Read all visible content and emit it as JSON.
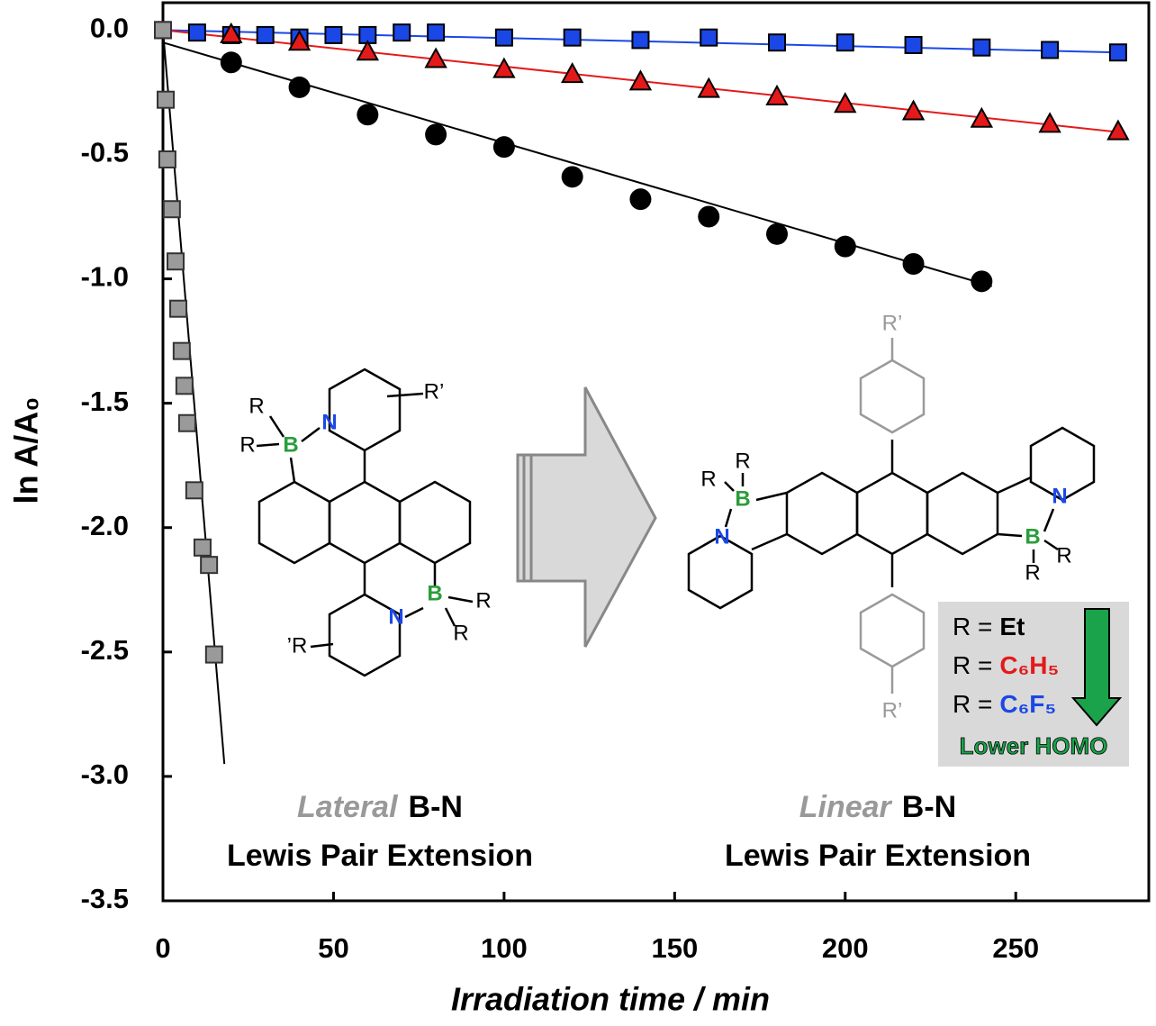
{
  "chart_data": {
    "type": "scatter",
    "xlabel": "Irradiation time / min",
    "ylabel": "ln A/A₀",
    "xlim": [
      0,
      289
    ],
    "ylim": [
      -3.5,
      0.11
    ],
    "xticks": [
      0,
      50,
      100,
      150,
      200,
      250
    ],
    "yticks": [
      {
        "value": 0,
        "label": "0.0"
      },
      {
        "value": -0.5,
        "label": "-0.5"
      },
      {
        "value": -1,
        "label": "-1.0"
      },
      {
        "value": -1.5,
        "label": "-1.5"
      },
      {
        "value": -2,
        "label": "-2.0"
      },
      {
        "value": -2.5,
        "label": "-2.5"
      },
      {
        "value": -3,
        "label": "-3.0"
      },
      {
        "value": -3.5,
        "label": "-3.5"
      }
    ],
    "series": [
      {
        "name": "C₆F₅",
        "color": "#1a47e6",
        "marker": "square",
        "x": [
          0,
          10,
          20,
          30,
          40,
          50,
          60,
          70,
          80,
          100,
          120,
          140,
          160,
          180,
          200,
          220,
          240,
          260,
          280
        ],
        "values": [
          0,
          -0.01,
          -0.02,
          -0.02,
          -0.03,
          -0.02,
          -0.02,
          -0.01,
          -0.01,
          -0.03,
          -0.03,
          -0.04,
          -0.03,
          -0.05,
          -0.05,
          -0.06,
          -0.07,
          -0.08,
          -0.09
        ],
        "fit": {
          "x": [
            0,
            280
          ],
          "y": [
            0,
            -0.09
          ]
        }
      },
      {
        "name": "C₆H₅",
        "color": "#e41a1a",
        "marker": "triangle",
        "x": [
          20,
          40,
          60,
          80,
          100,
          120,
          140,
          160,
          180,
          200,
          220,
          240,
          260,
          280
        ],
        "values": [
          -0.02,
          -0.05,
          -0.09,
          -0.12,
          -0.16,
          -0.18,
          -0.21,
          -0.24,
          -0.27,
          -0.3,
          -0.33,
          -0.36,
          -0.38,
          -0.41
        ],
        "fit": {
          "x": [
            0,
            280
          ],
          "y": [
            0,
            -0.41
          ]
        }
      },
      {
        "name": "Et",
        "color": "#000000",
        "marker": "circle",
        "x": [
          20,
          40,
          60,
          80,
          100,
          120,
          140,
          160,
          180,
          200,
          220,
          240
        ],
        "values": [
          -0.13,
          -0.23,
          -0.34,
          -0.42,
          -0.47,
          -0.59,
          -0.68,
          -0.75,
          -0.82,
          -0.87,
          -0.94,
          -1.01
        ],
        "fit": {
          "x": [
            0,
            243
          ],
          "y": [
            -0.05,
            -1.03
          ]
        }
      },
      {
        "color": "#9a9a9a",
        "marker": "square",
        "x": [
          0,
          0.8,
          1.3,
          2.6,
          3.7,
          4.5,
          5.5,
          6.3,
          7.1,
          9.2,
          11.6,
          13.5,
          15
        ],
        "values": [
          0,
          -0.28,
          -0.52,
          -0.72,
          -0.93,
          -1.12,
          -1.29,
          -1.43,
          -1.58,
          -1.85,
          -2.08,
          -2.15,
          -2.51
        ],
        "fit": {
          "x": [
            0,
            18
          ],
          "y": [
            0,
            -2.95
          ]
        }
      }
    ],
    "legend_prefix": "R =",
    "legend_note": "Lower HOMO",
    "annotations": {
      "left": {
        "emph": "Lateral",
        "tail": "B-N",
        "line2": "Lewis Pair Extension"
      },
      "right": {
        "emph": "Linear",
        "tail": "B-N",
        "line2": "Lewis Pair Extension"
      }
    },
    "structure_labels": {
      "left": [
        "R",
        "R",
        "B",
        "N",
        "R’",
        "B",
        "R",
        "R",
        "N",
        "’R"
      ],
      "right": [
        "R’",
        "R",
        "R",
        "B",
        "N",
        "N",
        "B",
        "R",
        "R",
        "R’"
      ]
    }
  }
}
